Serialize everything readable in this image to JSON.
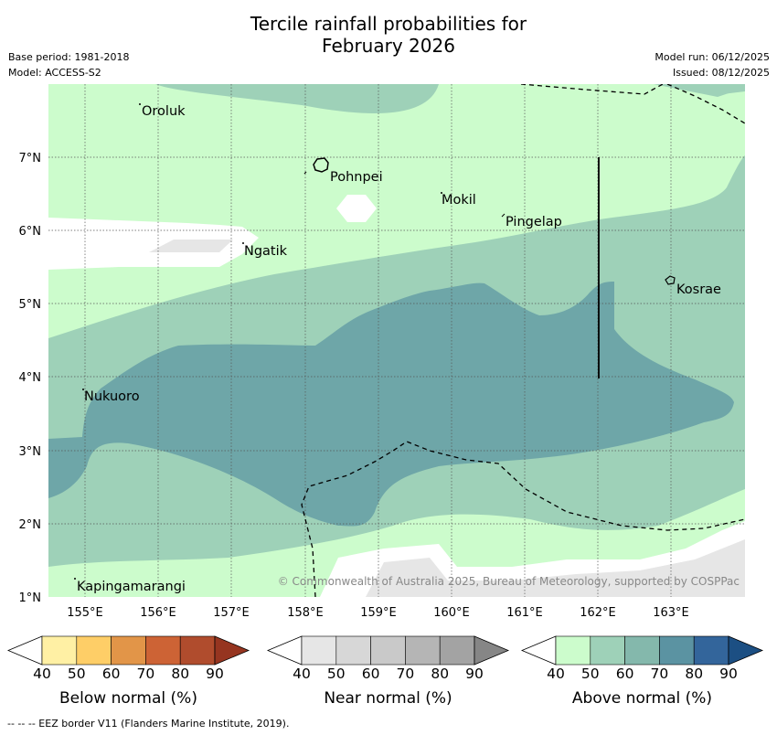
{
  "header": {
    "title_line1": "Tercile rainfall probabilities for",
    "title_line2": "February 2026",
    "base_period": "Base period: 1981-2018",
    "model": "Model: ACCESS-S2",
    "model_run": "Model run: 06/12/2025",
    "issued": "Issued: 08/12/2025"
  },
  "map": {
    "lat_labels": [
      "7°N",
      "6°N",
      "5°N",
      "4°N",
      "3°N",
      "2°N",
      "1°N"
    ],
    "lon_labels": [
      "155°E",
      "156°E",
      "157°E",
      "158°E",
      "159°E",
      "160°E",
      "161°E",
      "162°E",
      "163°E"
    ],
    "places": [
      "Oroluk",
      "Pohnpei",
      "Mokil",
      "Pingelap",
      "Ngatik",
      "Kosrae",
      "Nukuoro",
      "Kapingamarangi"
    ],
    "copyright": "© Commonwealth of Australia 2025, Bureau of Meteorology, supported by COSPPac"
  },
  "colorbars": [
    {
      "label": "Below normal (%)",
      "ticks": [
        "40",
        "50",
        "60",
        "70",
        "80",
        "90"
      ],
      "colors": [
        "#fff0a4",
        "#fece67",
        "#e29548",
        "#cd6335",
        "#b04c2d",
        "#963520"
      ]
    },
    {
      "label": "Near normal (%)",
      "ticks": [
        "40",
        "50",
        "60",
        "70",
        "80",
        "90"
      ],
      "colors": [
        "#e6e6e6",
        "#d7d7d7",
        "#c9c9c9",
        "#b5b5b5",
        "#a3a3a3",
        "#868686"
      ]
    },
    {
      "label": "Above normal (%)",
      "ticks": [
        "40",
        "50",
        "60",
        "70",
        "80",
        "90"
      ],
      "colors": [
        "#ccfccc",
        "#9ed1b8",
        "#84b8ac",
        "#5b93a2",
        "#33659b",
        "#1c4f83"
      ]
    }
  ],
  "footer": {
    "eez_note": "--  --  -- EEZ border V11 (Flanders Marine Institute, 2019)."
  }
}
